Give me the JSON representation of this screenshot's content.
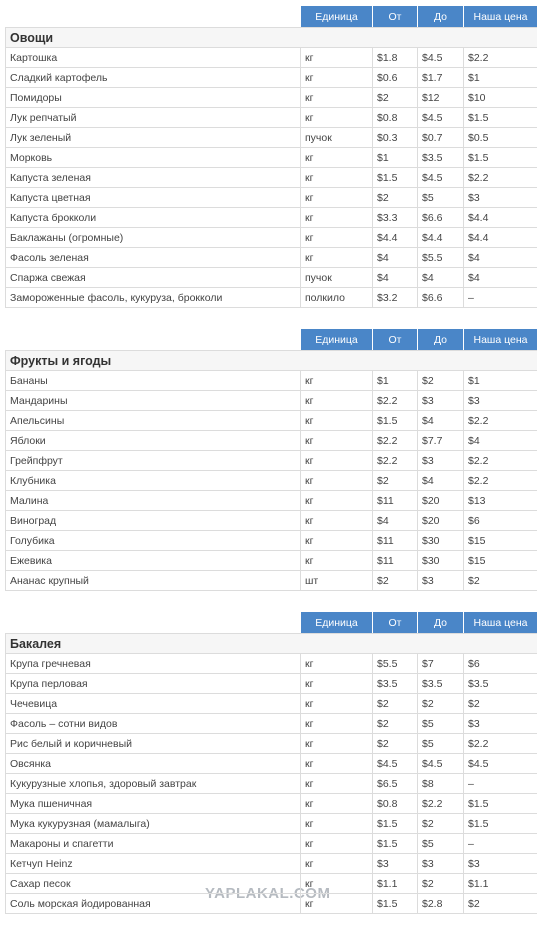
{
  "sections": [
    {
      "header": [
        "Единица",
        "От",
        "До",
        "Наша цена"
      ],
      "title": "Овощи",
      "rows": [
        [
          "Картошка",
          "кг",
          "$1.8",
          "$4.5",
          "$2.2"
        ],
        [
          "Сладкий картофель",
          "кг",
          "$0.6",
          "$1.7",
          "$1"
        ],
        [
          "Помидоры",
          "кг",
          "$2",
          "$12",
          "$10"
        ],
        [
          "Лук репчатый",
          "кг",
          "$0.8",
          "$4.5",
          "$1.5"
        ],
        [
          "Лук зеленый",
          "пучок",
          "$0.3",
          "$0.7",
          "$0.5"
        ],
        [
          "Морковь",
          "кг",
          "$1",
          "$3.5",
          "$1.5"
        ],
        [
          "Капуста зеленая",
          "кг",
          "$1.5",
          "$4.5",
          "$2.2"
        ],
        [
          "Капуста цветная",
          "кг",
          "$2",
          "$5",
          "$3"
        ],
        [
          "Капуста брокколи",
          "кг",
          "$3.3",
          "$6.6",
          "$4.4"
        ],
        [
          "Баклажаны (огромные)",
          "кг",
          "$4.4",
          "$4.4",
          "$4.4"
        ],
        [
          "Фасоль зеленая",
          "кг",
          "$4",
          "$5.5",
          "$4"
        ],
        [
          "Спаржа свежая",
          "пучок",
          "$4",
          "$4",
          "$4"
        ],
        [
          "Замороженные фасоль, кукуруза, брокколи",
          "полкило",
          "$3.2",
          "$6.6",
          "–"
        ]
      ]
    },
    {
      "header": [
        "Единица",
        "От",
        "До",
        "Наша цена"
      ],
      "title": "Фрукты и ягоды",
      "rows": [
        [
          "Бананы",
          "кг",
          "$1",
          "$2",
          "$1"
        ],
        [
          "Мандарины",
          "кг",
          "$2.2",
          "$3",
          "$3"
        ],
        [
          "Апельсины",
          "кг",
          "$1.5",
          "$4",
          "$2.2"
        ],
        [
          "Яблоки",
          "кг",
          "$2.2",
          "$7.7",
          "$4"
        ],
        [
          "Грейпфрут",
          "кг",
          "$2.2",
          "$3",
          "$2.2"
        ],
        [
          "Клубника",
          "кг",
          "$2",
          "$4",
          "$2.2"
        ],
        [
          "Малина",
          "кг",
          "$11",
          "$20",
          "$13"
        ],
        [
          "Виноград",
          "кг",
          "$4",
          "$20",
          "$6"
        ],
        [
          "Голубика",
          "кг",
          "$11",
          "$30",
          "$15"
        ],
        [
          "Ежевика",
          "кг",
          "$11",
          "$30",
          "$15"
        ],
        [
          "Ананас крупный",
          "шт",
          "$2",
          "$3",
          "$2"
        ]
      ]
    },
    {
      "header": [
        "Единица",
        "От",
        "До",
        "Наша цена"
      ],
      "title": "Бакалея",
      "rows": [
        [
          "Крупа гречневая",
          "кг",
          "$5.5",
          "$7",
          "$6"
        ],
        [
          "Крупа перловая",
          "кг",
          "$3.5",
          "$3.5",
          "$3.5"
        ],
        [
          "Чечевица",
          "кг",
          "$2",
          "$2",
          "$2"
        ],
        [
          "Фасоль – сотни видов",
          "кг",
          "$2",
          "$5",
          "$3"
        ],
        [
          "Рис белый и коричневый",
          "кг",
          "$2",
          "$5",
          "$2.2"
        ],
        [
          "Овсянка",
          "кг",
          "$4.5",
          "$4.5",
          "$4.5"
        ],
        [
          "Кукурузные хлопья, здоровый завтрак",
          "кг",
          "$6.5",
          "$8",
          "–"
        ],
        [
          "Мука пшеничная",
          "кг",
          "$0.8",
          "$2.2",
          "$1.5"
        ],
        [
          "Мука кукурузная (мамалыга)",
          "кг",
          "$1.5",
          "$2",
          "$1.5"
        ],
        [
          "Макароны и спагетти",
          "кг",
          "$1.5",
          "$5",
          "–"
        ],
        [
          "Кетчуп Heinz",
          "кг",
          "$3",
          "$3",
          "$3"
        ],
        [
          "Сахар песок",
          "кг",
          "$1.1",
          "$2",
          "$1.1"
        ],
        [
          "Соль морская йодированная",
          "кг",
          "$1.5",
          "$2.8",
          "$2"
        ]
      ]
    }
  ],
  "watermark": "YAPLAKAL.COM"
}
